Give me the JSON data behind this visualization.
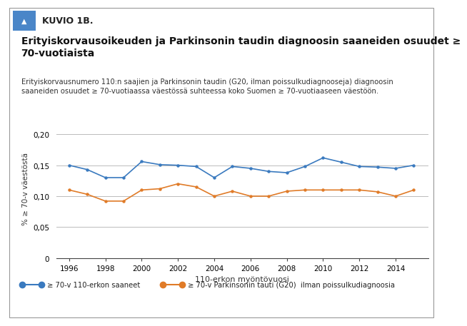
{
  "title_bold": "Erityiskorvausoikeuden ja Parkinsonin taudin diagnoosin saaneiden osuudet ≥\n70-vuotiaista",
  "subtitle": "Erityiskorvausnumero 110:n saajien ja Parkinsonin taudin (G20, ilman poissulkudiagnooseja) diagnoosin\nsaaneiden osuudet ≥ 70-vuotiaassa väestössä suhteessa koko Suomen ≥ 70-vuotiaaseen väestöön.",
  "kuvio_label": "KUVIO 1B.",
  "ylabel": "% ≥ 70-v väestöstä",
  "xlabel": "110-erkon myöntövuosi",
  "years": [
    1996,
    1997,
    1998,
    1999,
    2000,
    2001,
    2002,
    2003,
    2004,
    2005,
    2006,
    2007,
    2008,
    2009,
    2010,
    2011,
    2012,
    2013,
    2014,
    2015
  ],
  "blue_values": [
    0.15,
    0.143,
    0.13,
    0.13,
    0.156,
    0.151,
    0.15,
    0.148,
    0.13,
    0.148,
    0.145,
    0.14,
    0.138,
    0.148,
    0.162,
    0.155,
    0.148,
    0.147,
    0.145,
    0.15
  ],
  "orange_values": [
    0.11,
    0.103,
    0.092,
    0.092,
    0.11,
    0.112,
    0.12,
    0.115,
    0.1,
    0.108,
    0.1,
    0.1,
    0.108,
    0.11,
    0.11,
    0.11,
    0.11,
    0.107,
    0.1,
    0.11
  ],
  "blue_color": "#3a7abf",
  "orange_color": "#e07b28",
  "yticks": [
    0,
    0.05,
    0.1,
    0.15,
    0.2
  ],
  "ytick_labels": [
    "0",
    "0,05",
    "0,10",
    "0,15",
    "0,20"
  ],
  "xticks": [
    1996,
    1998,
    2000,
    2002,
    2004,
    2006,
    2008,
    2010,
    2012,
    2014
  ],
  "legend_blue": "≥ 70-v 110-erkon saaneet",
  "legend_orange": "≥ 70-v Parkinsonin tauti (G20)  ilman poissulkudiagnoosia",
  "bg_color": "#ffffff",
  "header_bg": "#dcdcdc",
  "header_accent": "#4a86c8",
  "border_color": "#999999"
}
